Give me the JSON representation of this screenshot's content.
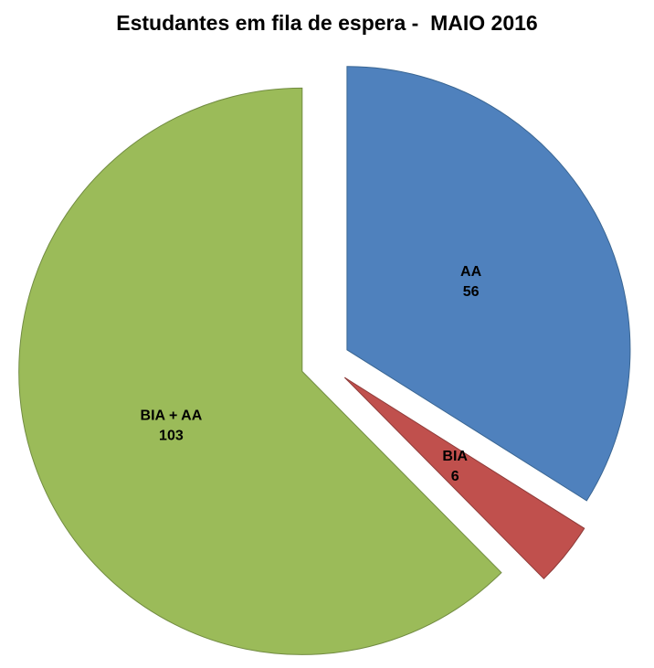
{
  "chart_data": {
    "type": "pie",
    "title": "Estudantes em fila de espera -  MAIO 2016",
    "slices": [
      {
        "label": "AA",
        "value": 56,
        "color": "#4F81BD",
        "border_color": "#3A6693"
      },
      {
        "label": "BIA",
        "value": 6,
        "color": "#C0504D",
        "border_color": "#8E3B39"
      },
      {
        "label": "BIA + AA",
        "value": 103,
        "color": "#9BBB59",
        "border_color": "#728C42"
      }
    ],
    "start_angle_deg": 0,
    "direction": "clockwise",
    "exploded": true,
    "explode_ratio": 0.088,
    "label_radius_ratio": 0.5,
    "legend": "none",
    "background_color": "#FFFFFF",
    "text_color": "#000000"
  }
}
